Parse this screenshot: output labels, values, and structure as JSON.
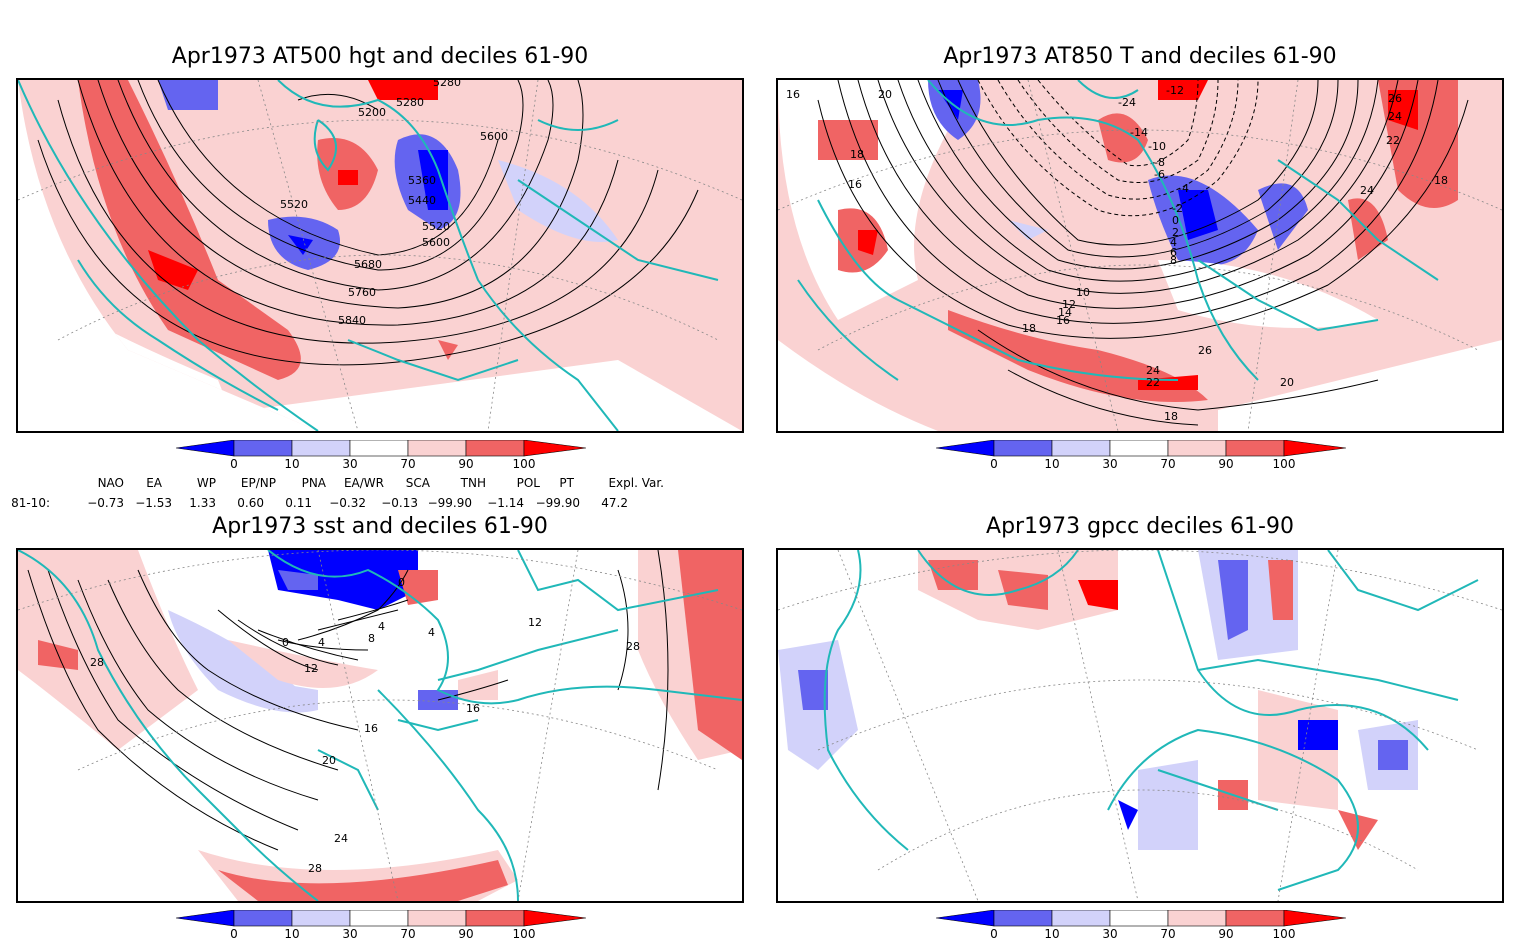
{
  "panels": [
    {
      "title": "Apr1973 AT500 hgt and deciles 61-90",
      "contour_labels": [
        "5280",
        "5280",
        "5200",
        "5600",
        "5360",
        "5440",
        "5520",
        "5520",
        "5600",
        "5680",
        "5760",
        "5840"
      ]
    },
    {
      "title": "Apr1973 AT850 T and deciles 61-90",
      "contour_labels": [
        "16",
        "20",
        "-12",
        "26",
        "24",
        "22",
        "-24",
        "-14",
        "-10",
        "-8",
        "-6",
        "-4",
        "-2",
        "0",
        "2",
        "4",
        "6",
        "8",
        "18",
        "16",
        "24",
        "10",
        "12",
        "14",
        "16",
        "18",
        "26",
        "24",
        "22",
        "20",
        "18",
        "18"
      ]
    },
    {
      "title": "Apr1973 sst and deciles 61-90",
      "contour_labels": [
        "28",
        "0",
        "4",
        "4",
        "8",
        "0",
        "4",
        "12",
        "12",
        "28",
        "16",
        "16",
        "20",
        "24",
        "28"
      ]
    },
    {
      "title": "Apr1973 gpcc deciles 61-90",
      "contour_labels": []
    }
  ],
  "colorbar": {
    "ticks": [
      "0",
      "10",
      "30",
      "70",
      "90",
      "100"
    ],
    "colors": {
      "dark_blue": "#0000ff",
      "mid_blue": "#6464f0",
      "light_blue": "#d2d2fa",
      "white": "#ffffff",
      "light_red": "#fad2d2",
      "mid_red": "#f06464",
      "dark_red": "#ff0000"
    }
  },
  "indices": {
    "headers": [
      "NAO",
      "EA",
      "WP",
      "EP/NP",
      "PNA",
      "EA/WR",
      "SCA",
      "TNH",
      "POL",
      "PT",
      "Expl. Var."
    ],
    "row_label": "81-10:",
    "values": [
      "−0.73",
      "−1.53",
      "1.33",
      "0.60",
      "0.11",
      "−0.32",
      "−0.13",
      "−99.90",
      "−1.14",
      "−99.90",
      "47.2"
    ]
  },
  "colors": {
    "coast": "#20b8b8",
    "contour": "#000000",
    "grid": "#888888"
  }
}
